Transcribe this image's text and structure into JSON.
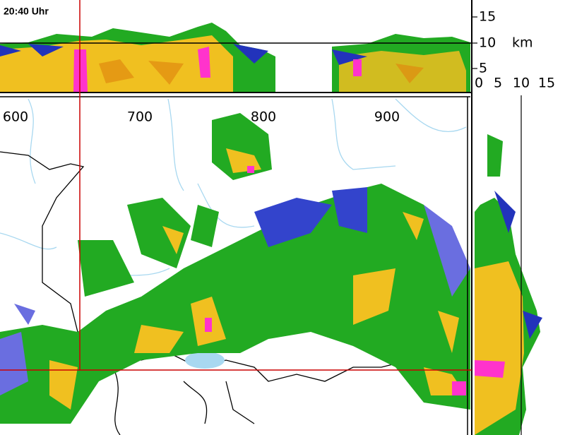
{
  "timestamp": "20:40 Uhr",
  "map": {
    "x_labels": [
      "600",
      "700",
      "800",
      "900"
    ]
  },
  "profile": {
    "unit": "km",
    "height_labels": [
      "15",
      "10",
      "5"
    ],
    "width_labels": [
      "0",
      "5",
      "10",
      "15"
    ]
  }
}
